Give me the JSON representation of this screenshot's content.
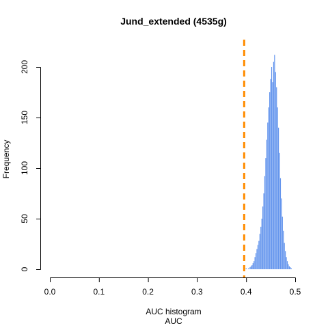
{
  "chart_data": {
    "type": "bar",
    "title": "Jund_extended (4535g)",
    "xlabel": "AUC histogram",
    "xlabel2": "AUC",
    "ylabel": "Frequency",
    "xlim": [
      0.0,
      0.5
    ],
    "ylim": [
      0,
      200
    ],
    "xticks": [
      "0.0",
      "0.1",
      "0.2",
      "0.3",
      "0.4",
      "0.5"
    ],
    "yticks": [
      "0",
      "50",
      "100",
      "150",
      "200"
    ],
    "grid": false,
    "bar_color": "#6495ED",
    "vline": {
      "x": 0.396,
      "color": "#FF8C00",
      "style": "dashed"
    },
    "bin_width": 0.001,
    "bins": [
      {
        "x": 0.4,
        "y": 1
      },
      {
        "x": 0.405,
        "y": 1
      },
      {
        "x": 0.408,
        "y": 2
      },
      {
        "x": 0.41,
        "y": 3
      },
      {
        "x": 0.412,
        "y": 4
      },
      {
        "x": 0.414,
        "y": 6
      },
      {
        "x": 0.416,
        "y": 8
      },
      {
        "x": 0.418,
        "y": 12
      },
      {
        "x": 0.42,
        "y": 16
      },
      {
        "x": 0.422,
        "y": 20
      },
      {
        "x": 0.424,
        "y": 24
      },
      {
        "x": 0.426,
        "y": 28
      },
      {
        "x": 0.428,
        "y": 35
      },
      {
        "x": 0.43,
        "y": 42
      },
      {
        "x": 0.432,
        "y": 50
      },
      {
        "x": 0.434,
        "y": 62
      },
      {
        "x": 0.436,
        "y": 75
      },
      {
        "x": 0.438,
        "y": 92
      },
      {
        "x": 0.44,
        "y": 110
      },
      {
        "x": 0.442,
        "y": 128
      },
      {
        "x": 0.444,
        "y": 145
      },
      {
        "x": 0.446,
        "y": 160
      },
      {
        "x": 0.448,
        "y": 175
      },
      {
        "x": 0.45,
        "y": 188
      },
      {
        "x": 0.452,
        "y": 200
      },
      {
        "x": 0.454,
        "y": 185
      },
      {
        "x": 0.456,
        "y": 205
      },
      {
        "x": 0.458,
        "y": 212
      },
      {
        "x": 0.46,
        "y": 195
      },
      {
        "x": 0.462,
        "y": 180
      },
      {
        "x": 0.464,
        "y": 160
      },
      {
        "x": 0.466,
        "y": 140
      },
      {
        "x": 0.468,
        "y": 115
      },
      {
        "x": 0.47,
        "y": 90
      },
      {
        "x": 0.472,
        "y": 70
      },
      {
        "x": 0.474,
        "y": 52
      },
      {
        "x": 0.476,
        "y": 38
      },
      {
        "x": 0.478,
        "y": 26
      },
      {
        "x": 0.48,
        "y": 18
      },
      {
        "x": 0.482,
        "y": 12
      },
      {
        "x": 0.484,
        "y": 8
      },
      {
        "x": 0.486,
        "y": 5
      },
      {
        "x": 0.488,
        "y": 3
      },
      {
        "x": 0.49,
        "y": 2
      },
      {
        "x": 0.492,
        "y": 1
      }
    ]
  }
}
